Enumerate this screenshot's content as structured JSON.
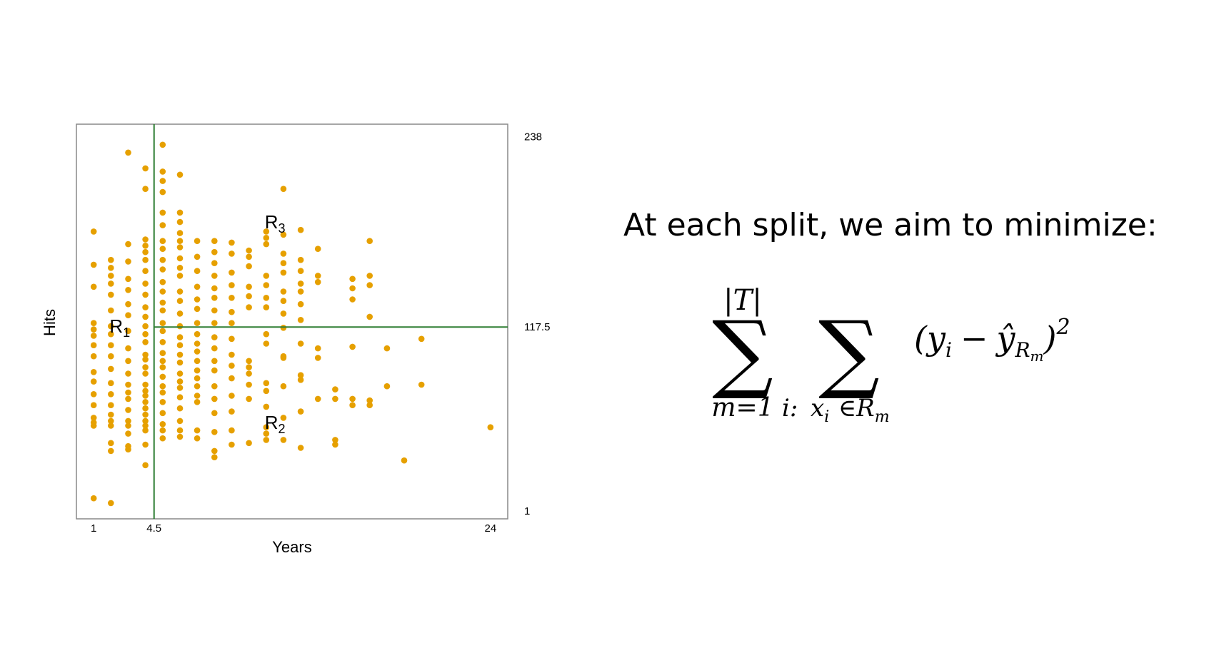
{
  "chart_data": {
    "type": "scatter",
    "xlabel": "Years",
    "ylabel": "Hits",
    "x_ticks": [
      "1",
      "4.5",
      "24"
    ],
    "y_ticks": [
      "1",
      "117.5",
      "238"
    ],
    "xlim": [
      0,
      25
    ],
    "ylim": [
      -4,
      246
    ],
    "splits": {
      "x": 4.5,
      "y": 117.5
    },
    "regions": [
      {
        "label": "R",
        "sub": "1",
        "x": 2,
        "y": 114
      },
      {
        "label": "R",
        "sub": "3",
        "x": 11,
        "y": 180
      },
      {
        "label": "R",
        "sub": "2",
        "x": 11,
        "y": 53
      }
    ],
    "colors": {
      "points": "#E6A000",
      "split_lines": "#2E7D32",
      "frame": "#888888"
    },
    "points": [
      [
        1,
        178
      ],
      [
        1,
        157
      ],
      [
        1,
        143
      ],
      [
        1,
        120
      ],
      [
        1,
        116
      ],
      [
        1,
        112
      ],
      [
        1,
        106
      ],
      [
        1,
        99
      ],
      [
        1,
        89
      ],
      [
        1,
        83
      ],
      [
        1,
        75
      ],
      [
        1,
        68
      ],
      [
        1,
        60
      ],
      [
        1,
        57
      ],
      [
        1,
        55
      ],
      [
        1,
        9
      ],
      [
        2,
        160
      ],
      [
        2,
        155
      ],
      [
        2,
        150
      ],
      [
        2,
        145
      ],
      [
        2,
        138
      ],
      [
        2,
        128
      ],
      [
        2,
        118
      ],
      [
        2,
        113
      ],
      [
        2,
        106
      ],
      [
        2,
        99
      ],
      [
        2,
        91
      ],
      [
        2,
        82
      ],
      [
        2,
        75
      ],
      [
        2,
        68
      ],
      [
        2,
        62
      ],
      [
        2,
        58
      ],
      [
        2,
        55
      ],
      [
        2,
        44
      ],
      [
        2,
        39
      ],
      [
        2,
        6
      ],
      [
        3,
        228
      ],
      [
        3,
        170
      ],
      [
        3,
        159
      ],
      [
        3,
        148
      ],
      [
        3,
        141
      ],
      [
        3,
        132
      ],
      [
        3,
        125
      ],
      [
        3,
        115
      ],
      [
        3,
        104
      ],
      [
        3,
        96
      ],
      [
        3,
        88
      ],
      [
        3,
        81
      ],
      [
        3,
        76
      ],
      [
        3,
        72
      ],
      [
        3,
        65
      ],
      [
        3,
        58
      ],
      [
        3,
        55
      ],
      [
        3,
        50
      ],
      [
        3,
        42
      ],
      [
        3,
        40
      ],
      [
        4,
        218
      ],
      [
        4,
        205
      ],
      [
        4,
        173
      ],
      [
        4,
        169
      ],
      [
        4,
        165
      ],
      [
        4,
        160
      ],
      [
        4,
        153
      ],
      [
        4,
        145
      ],
      [
        4,
        138
      ],
      [
        4,
        130
      ],
      [
        4,
        124
      ],
      [
        4,
        118
      ],
      [
        4,
        113
      ],
      [
        4,
        108
      ],
      [
        4,
        100
      ],
      [
        4,
        97
      ],
      [
        4,
        92
      ],
      [
        4,
        88
      ],
      [
        4,
        81
      ],
      [
        4,
        77
      ],
      [
        4,
        74
      ],
      [
        4,
        70
      ],
      [
        4,
        66
      ],
      [
        4,
        62
      ],
      [
        4,
        58
      ],
      [
        4,
        55
      ],
      [
        4,
        52
      ],
      [
        4,
        43
      ],
      [
        4,
        30
      ],
      [
        5,
        233
      ],
      [
        5,
        216
      ],
      [
        5,
        210
      ],
      [
        5,
        203
      ],
      [
        5,
        190
      ],
      [
        5,
        182
      ],
      [
        5,
        172
      ],
      [
        5,
        167
      ],
      [
        5,
        160
      ],
      [
        5,
        154
      ],
      [
        5,
        146
      ],
      [
        5,
        140
      ],
      [
        5,
        133
      ],
      [
        5,
        128
      ],
      [
        5,
        120
      ],
      [
        5,
        115
      ],
      [
        5,
        108
      ],
      [
        5,
        101
      ],
      [
        5,
        96
      ],
      [
        5,
        92
      ],
      [
        5,
        86
      ],
      [
        5,
        80
      ],
      [
        5,
        76
      ],
      [
        5,
        70
      ],
      [
        5,
        63
      ],
      [
        5,
        56
      ],
      [
        5,
        52
      ],
      [
        5,
        47
      ],
      [
        6,
        214
      ],
      [
        6,
        190
      ],
      [
        6,
        184
      ],
      [
        6,
        177
      ],
      [
        6,
        172
      ],
      [
        6,
        168
      ],
      [
        6,
        161
      ],
      [
        6,
        155
      ],
      [
        6,
        150
      ],
      [
        6,
        140
      ],
      [
        6,
        134
      ],
      [
        6,
        126
      ],
      [
        6,
        118
      ],
      [
        6,
        111
      ],
      [
        6,
        106
      ],
      [
        6,
        100
      ],
      [
        6,
        95
      ],
      [
        6,
        88
      ],
      [
        6,
        83
      ],
      [
        6,
        79
      ],
      [
        6,
        73
      ],
      [
        6,
        66
      ],
      [
        6,
        58
      ],
      [
        6,
        52
      ],
      [
        6,
        48
      ],
      [
        7,
        172
      ],
      [
        7,
        162
      ],
      [
        7,
        153
      ],
      [
        7,
        143
      ],
      [
        7,
        135
      ],
      [
        7,
        129
      ],
      [
        7,
        120
      ],
      [
        7,
        113
      ],
      [
        7,
        107
      ],
      [
        7,
        102
      ],
      [
        7,
        96
      ],
      [
        7,
        90
      ],
      [
        7,
        85
      ],
      [
        7,
        80
      ],
      [
        7,
        74
      ],
      [
        7,
        70
      ],
      [
        7,
        52
      ],
      [
        7,
        47
      ],
      [
        8,
        172
      ],
      [
        8,
        165
      ],
      [
        8,
        158
      ],
      [
        8,
        150
      ],
      [
        8,
        142
      ],
      [
        8,
        136
      ],
      [
        8,
        128
      ],
      [
        8,
        120
      ],
      [
        8,
        111
      ],
      [
        8,
        104
      ],
      [
        8,
        96
      ],
      [
        8,
        90
      ],
      [
        8,
        80
      ],
      [
        8,
        72
      ],
      [
        8,
        63
      ],
      [
        8,
        51
      ],
      [
        8,
        39
      ],
      [
        8,
        35
      ],
      [
        9,
        171
      ],
      [
        9,
        164
      ],
      [
        9,
        152
      ],
      [
        9,
        144
      ],
      [
        9,
        136
      ],
      [
        9,
        127
      ],
      [
        9,
        120
      ],
      [
        9,
        110
      ],
      [
        9,
        100
      ],
      [
        9,
        93
      ],
      [
        9,
        85
      ],
      [
        9,
        74
      ],
      [
        9,
        64
      ],
      [
        9,
        52
      ],
      [
        9,
        43
      ],
      [
        10,
        166
      ],
      [
        10,
        162
      ],
      [
        10,
        156
      ],
      [
        10,
        143
      ],
      [
        10,
        137
      ],
      [
        10,
        130
      ],
      [
        10,
        96
      ],
      [
        10,
        92
      ],
      [
        10,
        88
      ],
      [
        10,
        81
      ],
      [
        10,
        72
      ],
      [
        10,
        44
      ],
      [
        11,
        178
      ],
      [
        11,
        174
      ],
      [
        11,
        170
      ],
      [
        11,
        150
      ],
      [
        11,
        144
      ],
      [
        11,
        136
      ],
      [
        11,
        130
      ],
      [
        11,
        113
      ],
      [
        11,
        107
      ],
      [
        11,
        82
      ],
      [
        11,
        77
      ],
      [
        11,
        67
      ],
      [
        11,
        54
      ],
      [
        11,
        50
      ],
      [
        11,
        46
      ],
      [
        12,
        205
      ],
      [
        12,
        176
      ],
      [
        12,
        164
      ],
      [
        12,
        158
      ],
      [
        12,
        152
      ],
      [
        12,
        140
      ],
      [
        12,
        134
      ],
      [
        12,
        126
      ],
      [
        12,
        117
      ],
      [
        12,
        99
      ],
      [
        12,
        98
      ],
      [
        12,
        80
      ],
      [
        12,
        60
      ],
      [
        12,
        46
      ],
      [
        13,
        179
      ],
      [
        13,
        160
      ],
      [
        13,
        153
      ],
      [
        13,
        145
      ],
      [
        13,
        140
      ],
      [
        13,
        132
      ],
      [
        13,
        122
      ],
      [
        13,
        107
      ],
      [
        13,
        87
      ],
      [
        13,
        84
      ],
      [
        13,
        64
      ],
      [
        13,
        41
      ],
      [
        14,
        167
      ],
      [
        14,
        150
      ],
      [
        14,
        146
      ],
      [
        14,
        104
      ],
      [
        14,
        98
      ],
      [
        14,
        72
      ],
      [
        15,
        78
      ],
      [
        15,
        72
      ],
      [
        15,
        46
      ],
      [
        15,
        43
      ],
      [
        16,
        148
      ],
      [
        16,
        142
      ],
      [
        16,
        135
      ],
      [
        16,
        105
      ],
      [
        16,
        72
      ],
      [
        16,
        68
      ],
      [
        17,
        172
      ],
      [
        17,
        150
      ],
      [
        17,
        144
      ],
      [
        17,
        124
      ],
      [
        17,
        71
      ],
      [
        17,
        68
      ],
      [
        18,
        104
      ],
      [
        18,
        80
      ],
      [
        19,
        33
      ],
      [
        20,
        110
      ],
      [
        20,
        81
      ],
      [
        24,
        54
      ]
    ]
  },
  "slide": {
    "headline": "At each split, we aim to minimize:"
  },
  "formula": {
    "sum_outer_upper": "|T|",
    "sum_outer_lower": "m=1",
    "sum_inner_lower_a": "i:",
    "sum_inner_lower_b": "x",
    "sum_inner_lower_b_sub": "i",
    "sum_inner_lower_c": "∈R",
    "sum_inner_lower_c_sub": "m",
    "term_open": "(y",
    "term_y_sub": "i",
    "term_minus": "−",
    "term_yhat": "ŷ",
    "term_yhat_sub": "R",
    "term_yhat_subsub": "m",
    "term_close": ")",
    "term_exp": "2"
  }
}
